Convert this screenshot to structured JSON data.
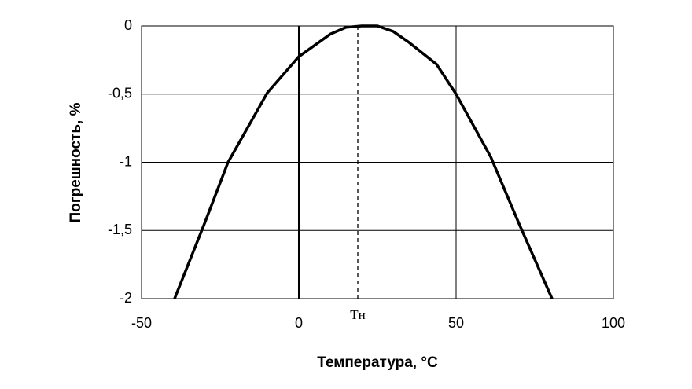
{
  "chart_data": {
    "type": "line",
    "x_label": "Температура, °С",
    "y_label": "Погрешность, %",
    "x": [
      -39.5,
      -30,
      -22.5,
      -10,
      0,
      10,
      15,
      20,
      25,
      30,
      35,
      43.75,
      50,
      61,
      70,
      80.5
    ],
    "series": [
      {
        "name": "Погрешность",
        "color": "#000000",
        "values": [
          -2,
          -1.45,
          -1,
          -0.49,
          -0.225,
          -0.06,
          -0.01,
          0,
          0,
          -0.04,
          -0.12,
          -0.28,
          -0.5,
          -0.96,
          -1.45,
          -2
        ]
      }
    ],
    "xlim": [
      -50,
      100
    ],
    "xticks": [
      -50,
      0,
      50,
      100
    ],
    "ylim": [
      -2,
      0
    ],
    "yticks": [
      {
        "value": -2,
        "label": "-2"
      },
      {
        "value": -1.5,
        "label": "-1,5"
      },
      {
        "value": -1,
        "label": "-1"
      },
      {
        "value": -0.5,
        "label": "-0,5"
      },
      {
        "value": 0,
        "label": "0"
      }
    ],
    "grid": true,
    "annotations": [
      {
        "text": "Тн",
        "x": 18.75
      }
    ]
  }
}
